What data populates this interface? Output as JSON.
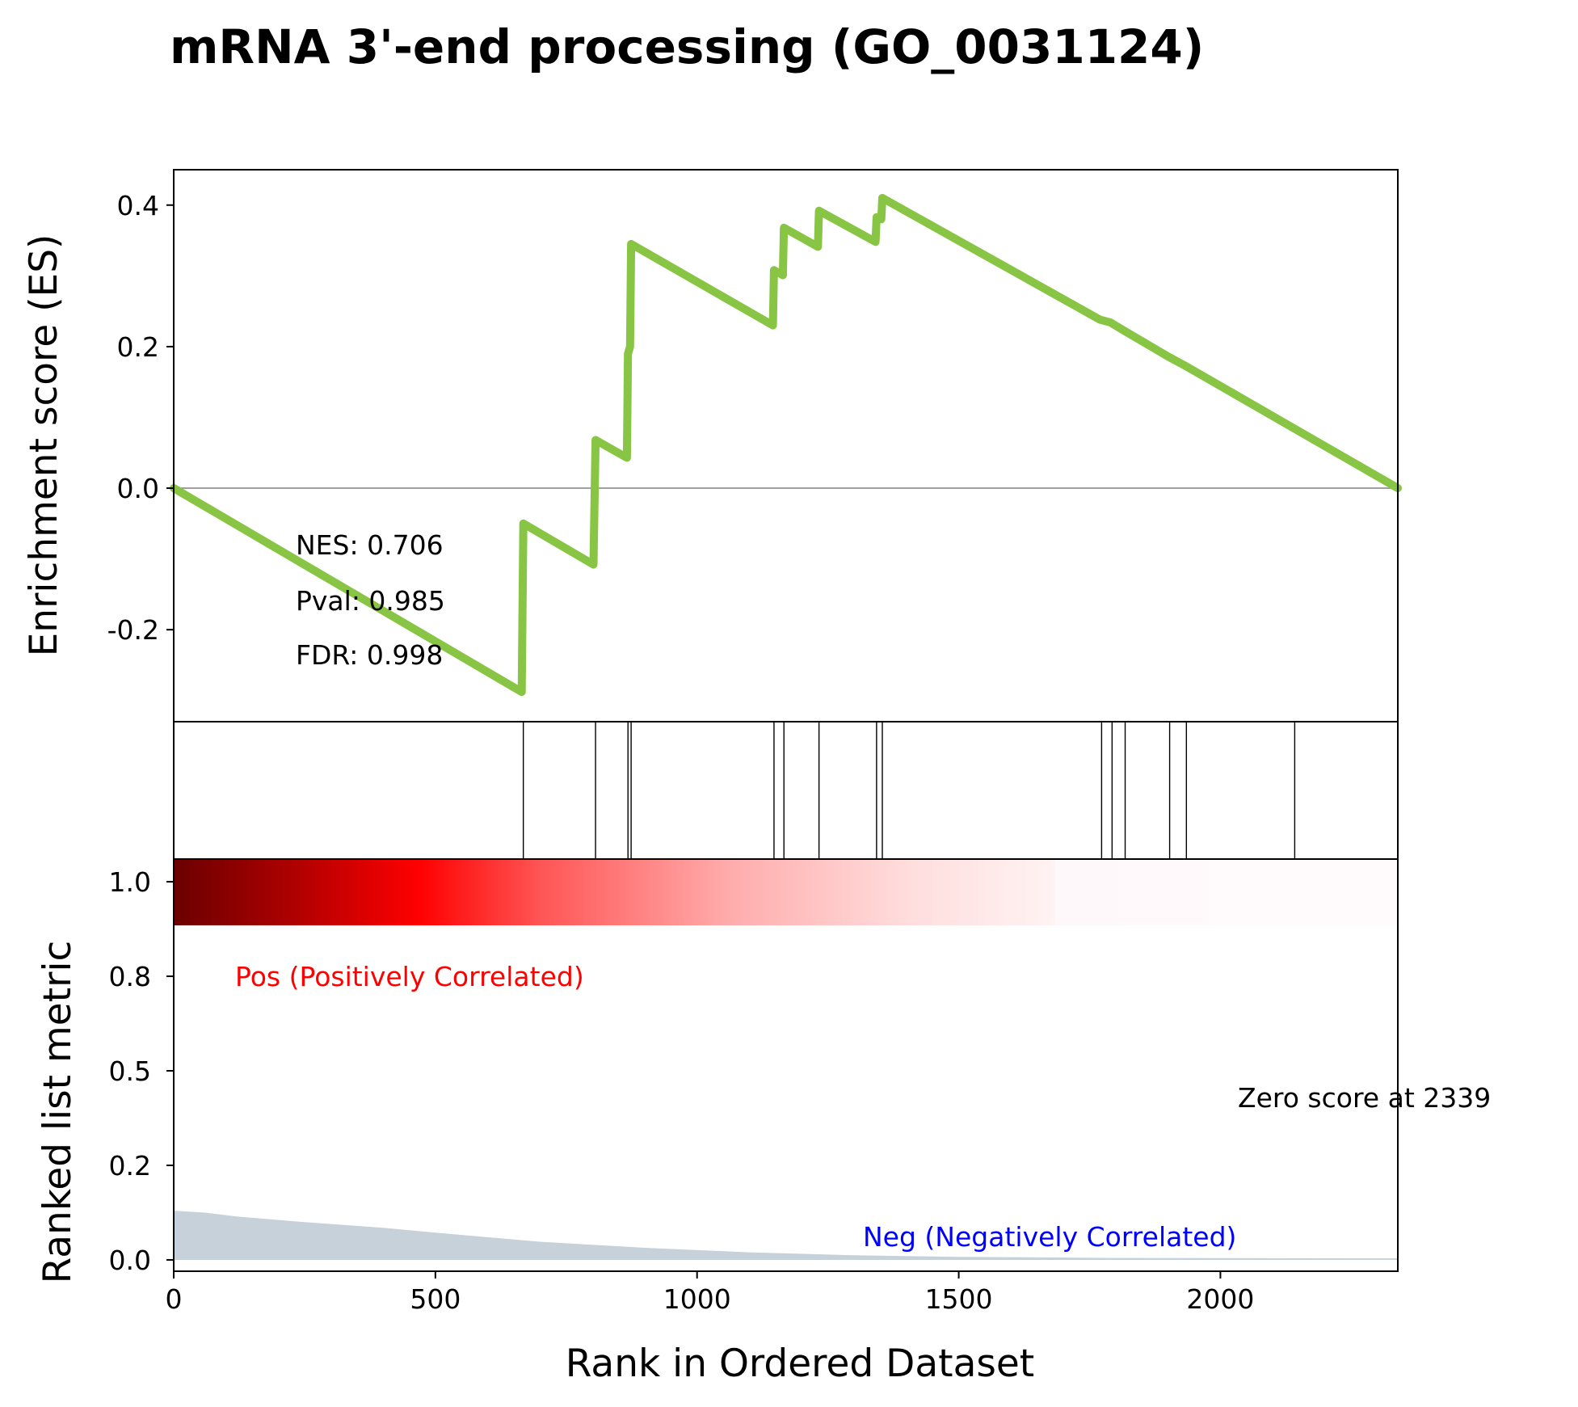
{
  "title": "mRNA 3'-end processing (GO_0031124)",
  "colors": {
    "es_line": "#88c544",
    "zero_line": "#808080",
    "hit_line": "#000000",
    "fill": "#c7d1d9",
    "pos_text": "#ff0000",
    "neg_text": "#0000ff"
  },
  "chart_data": {
    "type": "line",
    "x_range": [
      0,
      2339
    ],
    "xlabel": "Rank in Ordered Dataset",
    "x_ticks": [
      0,
      500,
      1000,
      1500,
      2000
    ],
    "es_panel": {
      "ylabel": "Enrichment score (ES)",
      "ylim": [
        -0.33,
        0.45
      ],
      "y_ticks": [
        {
          "value": 0.4,
          "label": "0.4"
        },
        {
          "value": 0.2,
          "label": "0.2"
        },
        {
          "value": 0.0,
          "label": "0.0"
        },
        {
          "value": -0.2,
          "label": "-0.2"
        }
      ],
      "es_curve": [
        {
          "x": 0,
          "y": 0.0
        },
        {
          "x": 665,
          "y": -0.288
        },
        {
          "x": 668,
          "y": -0.05
        },
        {
          "x": 802,
          "y": -0.108
        },
        {
          "x": 806,
          "y": 0.068
        },
        {
          "x": 866,
          "y": 0.043
        },
        {
          "x": 868,
          "y": 0.19
        },
        {
          "x": 872,
          "y": 0.2
        },
        {
          "x": 874,
          "y": 0.345
        },
        {
          "x": 1145,
          "y": 0.23
        },
        {
          "x": 1147,
          "y": 0.308
        },
        {
          "x": 1164,
          "y": 0.301
        },
        {
          "x": 1166,
          "y": 0.368
        },
        {
          "x": 1231,
          "y": 0.341
        },
        {
          "x": 1233,
          "y": 0.392
        },
        {
          "x": 1341,
          "y": 0.348
        },
        {
          "x": 1343,
          "y": 0.383
        },
        {
          "x": 1352,
          "y": 0.38
        },
        {
          "x": 1354,
          "y": 0.41
        },
        {
          "x": 1770,
          "y": 0.238
        },
        {
          "x": 1790,
          "y": 0.234
        },
        {
          "x": 1815,
          "y": 0.223
        },
        {
          "x": 1900,
          "y": 0.186
        },
        {
          "x": 1935,
          "y": 0.172
        },
        {
          "x": 2339,
          "y": 0.0
        }
      ],
      "stats": {
        "nes": "NES: 0.706",
        "pval": "Pval: 0.985",
        "fdr": "FDR: 0.998"
      }
    },
    "hits": [
      668,
      806,
      868,
      874,
      1147,
      1166,
      1233,
      1343,
      1354,
      1773,
      1793,
      1818,
      1903,
      1935,
      2142
    ],
    "metric_panel": {
      "ylabel": "Ranked list metric",
      "ylim": [
        -0.03,
        1.06
      ],
      "y_ticks": [
        {
          "value": 1.0,
          "label": "1.0"
        },
        {
          "value": 0.75,
          "label": "0.8"
        },
        {
          "value": 0.5,
          "label": "0.5"
        },
        {
          "value": 0.25,
          "label": "0.2"
        },
        {
          "value": 0.0,
          "label": "0.0"
        }
      ],
      "metric_curve": [
        {
          "x": 0,
          "y": 0.13
        },
        {
          "x": 60,
          "y": 0.125
        },
        {
          "x": 120,
          "y": 0.115
        },
        {
          "x": 250,
          "y": 0.1
        },
        {
          "x": 400,
          "y": 0.085
        },
        {
          "x": 500,
          "y": 0.072
        },
        {
          "x": 700,
          "y": 0.048
        },
        {
          "x": 900,
          "y": 0.032
        },
        {
          "x": 1100,
          "y": 0.02
        },
        {
          "x": 1300,
          "y": 0.012
        },
        {
          "x": 1500,
          "y": 0.008
        },
        {
          "x": 1800,
          "y": 0.005
        },
        {
          "x": 2339,
          "y": 0.004
        }
      ],
      "pos_label": "Pos (Positively Correlated)",
      "neg_label": "Neg (Negatively Correlated)",
      "zero_label": "Zero score at 2339"
    }
  }
}
